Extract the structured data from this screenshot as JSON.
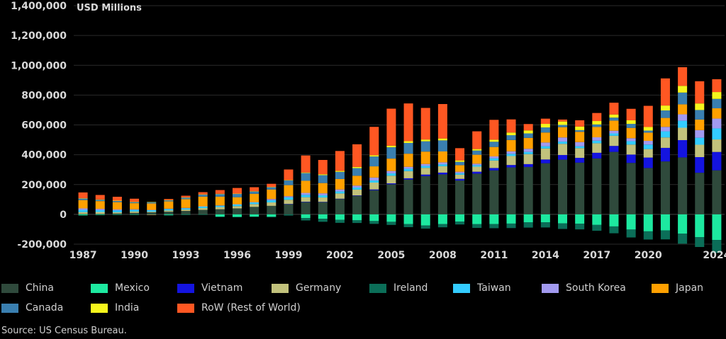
{
  "chart_data": {
    "type": "bar",
    "stacked": true,
    "ylabel": "USD Millions",
    "ylim": [
      -200000,
      1400000
    ],
    "yticks": [
      -200000,
      0,
      200000,
      400000,
      600000,
      800000,
      1000000,
      1200000,
      1400000
    ],
    "ytick_labels": [
      "-200,000",
      "0",
      "200,000",
      "400,000",
      "600,000",
      "800,000",
      "1,000,000",
      "1,200,000",
      "1,400,000"
    ],
    "xtick_labels": [
      "1987",
      "1990",
      "1993",
      "1996",
      "1999",
      "2002",
      "2005",
      "2008",
      "2011",
      "2014",
      "2017",
      "2020",
      "2024"
    ],
    "categories": [
      "1987",
      "1988",
      "1989",
      "1990",
      "1991",
      "1992",
      "1993",
      "1994",
      "1995",
      "1996",
      "1997",
      "1998",
      "1999",
      "2000",
      "2001",
      "2002",
      "2003",
      "2004",
      "2005",
      "2006",
      "2007",
      "2008",
      "2009",
      "2010",
      "2011",
      "2012",
      "2013",
      "2014",
      "2015",
      "2016",
      "2017",
      "2018",
      "2019",
      "2020",
      "2021",
      "2022",
      "2023",
      "2024"
    ],
    "grid": true,
    "legend_position": "bottom",
    "series": [
      {
        "name": "China",
        "color": "#2f4a3c",
        "values": [
          3000,
          3000,
          6000,
          10000,
          13000,
          18000,
          23000,
          30000,
          34000,
          40000,
          50000,
          57000,
          69000,
          84000,
          83000,
          103000,
          124000,
          162000,
          202000,
          234000,
          257000,
          268000,
          227000,
          273000,
          295000,
          315000,
          318000,
          343000,
          367000,
          347000,
          375000,
          419000,
          345000,
          311000,
          355000,
          382000,
          279000,
          295500
        ]
      },
      {
        "name": "Mexico",
        "color": "#1de9a0",
        "values": [
          -6000,
          -3000,
          -2000,
          -2000,
          -2000,
          -5000,
          -1500,
          -1000,
          -16000,
          -17000,
          -15000,
          -16000,
          0,
          -25000,
          -30000,
          -37000,
          -40000,
          -45000,
          -50000,
          -65000,
          -75000,
          -65000,
          -48000,
          -66000,
          -65000,
          -62000,
          -54000,
          -53000,
          -61000,
          -63000,
          -71000,
          -81000,
          -102000,
          -114000,
          -108000,
          -130000,
          -153000,
          -172000
        ]
      },
      {
        "name": "Vietnam",
        "color": "#1414e0",
        "values": [
          0,
          0,
          0,
          0,
          0,
          0,
          0,
          0,
          0,
          0,
          0,
          0,
          1000,
          1000,
          1000,
          2000,
          3000,
          5000,
          6000,
          8000,
          10000,
          12000,
          11000,
          13000,
          16000,
          16000,
          19000,
          25000,
          31000,
          32000,
          38000,
          40000,
          56000,
          70000,
          91000,
          116000,
          105000,
          123000
        ]
      },
      {
        "name": "Germany",
        "color": "#c2c27c",
        "values": [
          12000,
          13000,
          8000,
          9000,
          5000,
          8000,
          9000,
          12000,
          15000,
          15000,
          19000,
          23000,
          28000,
          30000,
          29000,
          35000,
          39000,
          46000,
          51000,
          48000,
          45000,
          43000,
          28000,
          34000,
          50000,
          60000,
          67000,
          74000,
          75000,
          65000,
          64000,
          68000,
          67000,
          57000,
          70000,
          83000,
          83000,
          84000
        ]
      },
      {
        "name": "Ireland",
        "color": "#0b6e58",
        "values": [
          -1000,
          -1000,
          -1000,
          -1000,
          -1000,
          -1000,
          -1000,
          -1000,
          -1000,
          -1000,
          -2000,
          -4000,
          -8000,
          -16000,
          -20000,
          -20000,
          -18000,
          -19000,
          -21000,
          -21000,
          -21000,
          -22000,
          -20000,
          -25000,
          -28000,
          -30000,
          -35000,
          -35000,
          -37000,
          -38000,
          -39000,
          -46000,
          -53000,
          -55000,
          -60000,
          -67000,
          -66000,
          -87000
        ]
      },
      {
        "name": "Taiwan",
        "color": "#33ccff",
        "values": [
          15000,
          12000,
          13000,
          11000,
          10000,
          10000,
          9000,
          10000,
          9000,
          12000,
          12000,
          15000,
          16000,
          16000,
          15000,
          14000,
          14000,
          14000,
          16000,
          16000,
          13000,
          13000,
          10000,
          10000,
          15000,
          15000,
          15000,
          15000,
          15000,
          13000,
          17000,
          16000,
          23000,
          30000,
          41000,
          47000,
          47000,
          74000
        ]
      },
      {
        "name": "South Korea",
        "color": "#a29af0",
        "values": [
          10000,
          9000,
          6000,
          4000,
          2000,
          2000,
          2000,
          2000,
          2000,
          1000,
          1000,
          8000,
          8000,
          13000,
          13000,
          13000,
          13000,
          20000,
          16000,
          13000,
          13000,
          13000,
          10000,
          10000,
          13000,
          17000,
          21000,
          25000,
          28000,
          28000,
          23000,
          18000,
          20000,
          25000,
          30000,
          43000,
          51000,
          66000
        ]
      },
      {
        "name": "Japan",
        "color": "#ffa000",
        "values": [
          56000,
          52000,
          49000,
          41000,
          43000,
          49000,
          59000,
          65000,
          59000,
          47000,
          56000,
          64000,
          74000,
          81000,
          69000,
          70000,
          66000,
          75000,
          83000,
          88000,
          83000,
          73000,
          44000,
          60000,
          63000,
          76000,
          73000,
          67000,
          69000,
          69000,
          69000,
          68000,
          69000,
          55000,
          60000,
          67000,
          71000,
          69000
        ]
      },
      {
        "name": "Canada",
        "color": "#3a7fb0",
        "values": [
          11000,
          10000,
          9000,
          8000,
          9000,
          8000,
          11000,
          14000,
          18000,
          23000,
          16000,
          16000,
          32000,
          52000,
          53000,
          48000,
          51000,
          66000,
          76000,
          72000,
          69000,
          74000,
          22000,
          28000,
          35000,
          32000,
          30000,
          34000,
          15000,
          11000,
          17000,
          20000,
          27000,
          14000,
          50000,
          79000,
          64000,
          63000
        ]
      },
      {
        "name": "India",
        "color": "#f6f61c",
        "values": [
          1000,
          1000,
          1000,
          1000,
          1000,
          1000,
          1000,
          1000,
          1000,
          1000,
          1000,
          1000,
          2000,
          4000,
          6000,
          7000,
          8000,
          9000,
          11000,
          12000,
          12000,
          13000,
          10000,
          10000,
          14000,
          18000,
          20000,
          24000,
          23000,
          24000,
          23000,
          21000,
          24000,
          24000,
          33000,
          45000,
          44000,
          46000
        ]
      },
      {
        "name": "RoW (Rest of World)",
        "color": "#ff5722",
        "values": [
          39000,
          30000,
          26000,
          21000,
          -2000,
          7000,
          11000,
          15000,
          25000,
          38000,
          27000,
          21000,
          71000,
          114000,
          96000,
          133000,
          152000,
          190000,
          248000,
          253000,
          212000,
          231000,
          82000,
          119000,
          133000,
          88000,
          43000,
          35000,
          13000,
          42000,
          54000,
          79000,
          77000,
          142000,
          182000,
          125000,
          149000,
          86000
        ]
      }
    ]
  },
  "legend_order": [
    "China",
    "Mexico",
    "Vietnam",
    "Germany",
    "Ireland",
    "Taiwan",
    "South Korea",
    "Japan",
    "Canada",
    "India",
    "RoW (Rest of World)"
  ],
  "source": "Source: US Census Bureau."
}
